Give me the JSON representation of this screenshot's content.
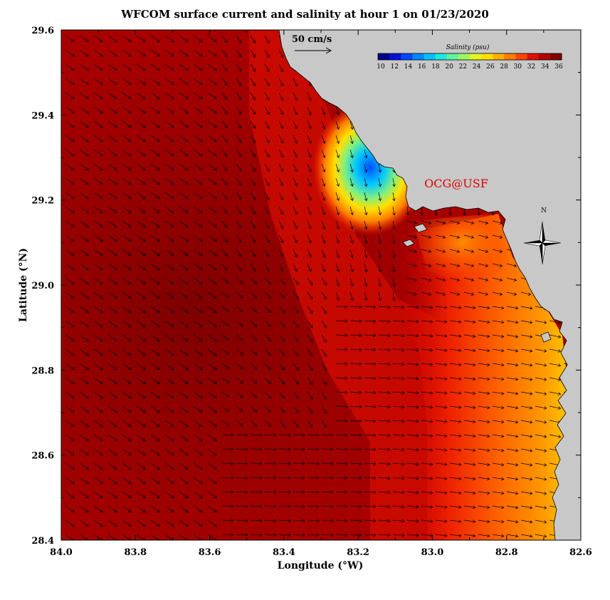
{
  "title": "WFCOM surface current and salinity at hour 1 on 01/23/2020",
  "xlabel": "Longitude (°W)",
  "ylabel": "Latitude (°N)",
  "credit": "OCG@USF",
  "scale_label": "50 cm/s",
  "colorbar": {
    "title": "Salinity (psu)",
    "ticks": [
      "10",
      "12",
      "14",
      "16",
      "18",
      "20",
      "22",
      "24",
      "26",
      "28",
      "30",
      "32",
      "34",
      "36"
    ],
    "colors": [
      "#00008c",
      "#0010d8",
      "#0048ff",
      "#0088ff",
      "#00c0ff",
      "#20e8e0",
      "#60f4a0",
      "#a0f860",
      "#e0f820",
      "#ffe000",
      "#ffb000",
      "#ff7c00",
      "#ff4400",
      "#e01000",
      "#b00000",
      "#800000"
    ]
  },
  "compass": {
    "label": "N"
  },
  "x_ticks": [
    "84.0",
    "83.8",
    "83.6",
    "83.4",
    "83.2",
    "83.0",
    "82.8",
    "82.6"
  ],
  "y_ticks": [
    "29.6",
    "29.4",
    "29.2",
    "29.0",
    "28.8",
    "28.6",
    "28.4"
  ],
  "colors": {
    "land": "#c8c8c8",
    "credit": "#dd0000",
    "sea_deep": "#8e0000",
    "sea_mid": "#c40000"
  },
  "chart_data": {
    "type": "map",
    "x_range_degW": [
      84.0,
      82.6
    ],
    "y_range_degN": [
      28.4,
      29.6
    ],
    "variable": "surface salinity (psu) with surface current vectors",
    "salinity_range_psu": [
      10,
      36
    ],
    "low_salinity_plume": {
      "lon_W": 83.17,
      "lat_N": 29.28,
      "min_psu": 16
    },
    "coastal_gradient": {
      "from_psu": 36,
      "to_psu": 27,
      "near_lon_W": 82.75
    }
  }
}
